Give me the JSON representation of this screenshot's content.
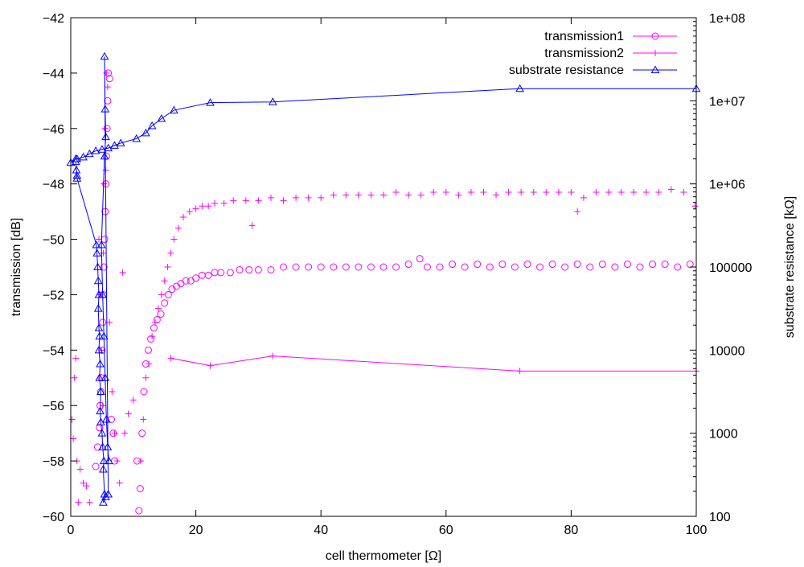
{
  "chart_data": {
    "type": "scatter",
    "xlabel": "cell thermometer [Ω]",
    "ylabel": "transmission [dB]",
    "y2label": "substrate resistance [kΩ]",
    "xlim": [
      0,
      100
    ],
    "ylim": [
      -60,
      -42
    ],
    "y2lim": [
      100,
      100000000
    ],
    "y2scale": "log",
    "grid": false,
    "legend_position": "top-right",
    "x_ticks": [
      "0",
      "20",
      "40",
      "60",
      "80",
      "100"
    ],
    "y_ticks": [
      "−60",
      "−58",
      "−56",
      "−54",
      "−52",
      "−50",
      "−48",
      "−46",
      "−44",
      "−42"
    ],
    "y2_ticks": [
      "100",
      "1000",
      "10000",
      "100000",
      "1e+06",
      "1e+07",
      "1e+08"
    ],
    "colors": {
      "transmission1": "#ff00ff",
      "transmission2": "#ff00ff",
      "substrate": "#0000ff",
      "axis": "#000000"
    },
    "series": [
      {
        "name": "transmission1",
        "marker": "circle",
        "axis": "left",
        "line": false,
        "points": [
          [
            4.0,
            -58.2
          ],
          [
            4.3,
            -57.5
          ],
          [
            4.6,
            -56.8
          ],
          [
            4.8,
            -55.5
          ],
          [
            5.0,
            -54.0
          ],
          [
            5.2,
            -52.0
          ],
          [
            5.4,
            -50.0
          ],
          [
            5.6,
            -48.0
          ],
          [
            5.8,
            -46.0
          ],
          [
            6.0,
            -44.0
          ],
          [
            6.2,
            -44.2
          ],
          [
            5.9,
            -45.0
          ],
          [
            5.7,
            -47.0
          ],
          [
            5.5,
            -49.0
          ],
          [
            5.3,
            -51.0
          ],
          [
            5.1,
            -53.0
          ],
          [
            4.9,
            -55.0
          ],
          [
            4.7,
            -56.0
          ],
          [
            6.5,
            -56.5
          ],
          [
            6.8,
            -57.0
          ],
          [
            7.0,
            -58.0
          ],
          [
            10.6,
            -58.0
          ],
          [
            10.9,
            -59.8
          ],
          [
            11.1,
            -59.0
          ],
          [
            11.4,
            -57.0
          ],
          [
            11.7,
            -55.5
          ],
          [
            12.0,
            -54.5
          ],
          [
            12.4,
            -54.0
          ],
          [
            12.8,
            -53.6
          ],
          [
            13.3,
            -53.2
          ],
          [
            13.8,
            -52.9
          ],
          [
            14.4,
            -52.7
          ],
          [
            15.0,
            -52.3
          ],
          [
            15.6,
            -52.0
          ],
          [
            16.2,
            -51.8
          ],
          [
            16.9,
            -51.7
          ],
          [
            17.6,
            -51.6
          ],
          [
            18.4,
            -51.5
          ],
          [
            19.2,
            -51.5
          ],
          [
            20.0,
            -51.4
          ],
          [
            21.0,
            -51.3
          ],
          [
            22.0,
            -51.3
          ],
          [
            23.0,
            -51.2
          ],
          [
            24.0,
            -51.2
          ],
          [
            25.5,
            -51.2
          ],
          [
            27.0,
            -51.1
          ],
          [
            28.5,
            -51.1
          ],
          [
            30.0,
            -51.1
          ],
          [
            32.0,
            -51.1
          ],
          [
            34.0,
            -51.0
          ],
          [
            36.0,
            -51.0
          ],
          [
            38.0,
            -51.0
          ],
          [
            40.0,
            -51.0
          ],
          [
            42.0,
            -51.0
          ],
          [
            44.0,
            -51.0
          ],
          [
            46.0,
            -51.0
          ],
          [
            48.0,
            -51.0
          ],
          [
            50.0,
            -51.0
          ],
          [
            52.0,
            -51.0
          ],
          [
            54.0,
            -50.9
          ],
          [
            55.8,
            -50.7
          ],
          [
            57.0,
            -51.0
          ],
          [
            59.0,
            -51.0
          ],
          [
            61.0,
            -50.9
          ],
          [
            63.0,
            -51.0
          ],
          [
            65.0,
            -50.9
          ],
          [
            67.0,
            -51.0
          ],
          [
            69.0,
            -50.9
          ],
          [
            71.0,
            -51.0
          ],
          [
            73.0,
            -50.9
          ],
          [
            75.0,
            -51.0
          ],
          [
            77.0,
            -50.9
          ],
          [
            79.0,
            -51.0
          ],
          [
            81.0,
            -50.9
          ],
          [
            83.0,
            -51.0
          ],
          [
            85.0,
            -50.9
          ],
          [
            87.0,
            -51.0
          ],
          [
            89.0,
            -50.9
          ],
          [
            91.0,
            -51.0
          ],
          [
            93.0,
            -50.9
          ],
          [
            95.0,
            -50.9
          ],
          [
            97.0,
            -51.0
          ],
          [
            99.0,
            -50.9
          ]
        ]
      },
      {
        "name": "transmission2",
        "marker": "plus",
        "axis": "left",
        "line": false,
        "points": [
          [
            0.2,
            -56.5
          ],
          [
            0.4,
            -57.2
          ],
          [
            0.6,
            -55.0
          ],
          [
            0.8,
            -54.3
          ],
          [
            1.0,
            -58.0
          ],
          [
            1.2,
            -59.5
          ],
          [
            1.5,
            -58.3
          ],
          [
            2.0,
            -58.8
          ],
          [
            2.5,
            -58.9
          ],
          [
            3.0,
            -59.5
          ],
          [
            4.5,
            -50.0
          ],
          [
            4.7,
            -52.0
          ],
          [
            4.9,
            -54.0
          ],
          [
            5.1,
            -56.0
          ],
          [
            5.3,
            -48.0
          ],
          [
            5.5,
            -46.0
          ],
          [
            5.7,
            -44.0
          ],
          [
            5.9,
            -44.5
          ],
          [
            5.6,
            -47.5
          ],
          [
            5.2,
            -50.5
          ],
          [
            6.2,
            -53.0
          ],
          [
            6.6,
            -55.5
          ],
          [
            7.0,
            -57.0
          ],
          [
            7.4,
            -58.0
          ],
          [
            7.8,
            -58.8
          ],
          [
            8.3,
            -51.2
          ],
          [
            8.6,
            -57.0
          ],
          [
            9.2,
            -56.3
          ],
          [
            10.0,
            -55.8
          ],
          [
            11.2,
            -58.0
          ],
          [
            11.6,
            -56.5
          ],
          [
            12.0,
            -55.0
          ],
          [
            12.5,
            -54.5
          ],
          [
            13.0,
            -53.5
          ],
          [
            13.5,
            -53.0
          ],
          [
            14.0,
            -52.5
          ],
          [
            14.5,
            -52.0
          ],
          [
            15.0,
            -51.5
          ],
          [
            15.5,
            -51.0
          ],
          [
            16.0,
            -50.5
          ],
          [
            16.5,
            -50.0
          ],
          [
            17.2,
            -49.6
          ],
          [
            18.0,
            -49.2
          ],
          [
            19.0,
            -49.0
          ],
          [
            20.0,
            -48.9
          ],
          [
            21.0,
            -48.8
          ],
          [
            22.0,
            -48.8
          ],
          [
            23.0,
            -48.7
          ],
          [
            24.5,
            -48.7
          ],
          [
            26.0,
            -48.6
          ],
          [
            28.0,
            -48.6
          ],
          [
            29.0,
            -49.5
          ],
          [
            30.0,
            -48.6
          ],
          [
            32.0,
            -48.5
          ],
          [
            34.0,
            -48.6
          ],
          [
            36.0,
            -48.5
          ],
          [
            38.0,
            -48.5
          ],
          [
            40.0,
            -48.5
          ],
          [
            42.0,
            -48.4
          ],
          [
            44.0,
            -48.4
          ],
          [
            46.0,
            -48.4
          ],
          [
            48.0,
            -48.4
          ],
          [
            50.0,
            -48.4
          ],
          [
            52.0,
            -48.3
          ],
          [
            54.0,
            -48.4
          ],
          [
            56.0,
            -48.4
          ],
          [
            58.0,
            -48.3
          ],
          [
            60.0,
            -48.3
          ],
          [
            62.0,
            -48.4
          ],
          [
            64.0,
            -48.3
          ],
          [
            66.0,
            -48.3
          ],
          [
            68.0,
            -48.4
          ],
          [
            70.0,
            -48.3
          ],
          [
            72.0,
            -48.3
          ],
          [
            74.0,
            -48.3
          ],
          [
            76.0,
            -48.3
          ],
          [
            78.0,
            -48.3
          ],
          [
            80.0,
            -48.3
          ],
          [
            81.0,
            -49.0
          ],
          [
            82.0,
            -48.5
          ],
          [
            84.0,
            -48.3
          ],
          [
            86.0,
            -48.3
          ],
          [
            88.0,
            -48.3
          ],
          [
            90.0,
            -48.3
          ],
          [
            92.0,
            -48.3
          ],
          [
            94.0,
            -48.3
          ],
          [
            96.0,
            -48.2
          ],
          [
            98.0,
            -48.3
          ],
          [
            99.8,
            -48.8
          ]
        ]
      },
      {
        "name": "transmission2",
        "marker": "plus",
        "axis": "right",
        "line": true,
        "legend": false,
        "points": [
          [
            16.0,
            8000
          ],
          [
            22.3,
            6500
          ],
          [
            32.3,
            8500
          ],
          [
            71.8,
            5600
          ],
          [
            100.0,
            5600
          ]
        ]
      },
      {
        "name": "substrate resistance",
        "marker": "triangle",
        "axis": "right",
        "line": true,
        "points": [
          [
            0.0,
            1800000
          ],
          [
            0.8,
            2000000
          ],
          [
            1.0,
            2000000
          ],
          [
            2.0,
            2100000
          ],
          [
            3.0,
            2300000
          ],
          [
            4.0,
            2500000
          ],
          [
            5.0,
            2600000
          ],
          [
            6.0,
            2700000
          ],
          [
            7.0,
            2900000
          ],
          [
            8.0,
            3100000
          ],
          [
            10.5,
            3500000
          ],
          [
            12.0,
            4100000
          ],
          [
            13.0,
            5000000
          ],
          [
            14.5,
            6100000
          ],
          [
            16.5,
            7700000
          ],
          [
            22.3,
            9500000
          ],
          [
            32.3,
            9700000
          ],
          [
            71.8,
            14000000
          ],
          [
            100.0,
            14000000
          ]
        ]
      },
      {
        "name": "substrate resistance",
        "marker": "triangle",
        "axis": "left",
        "line": true,
        "legend": false,
        "points": [
          [
            0.8,
            -47.2
          ],
          [
            0.9,
            -47.5
          ],
          [
            1.0,
            -47.7
          ],
          [
            1.0,
            -47.8
          ],
          [
            4.1,
            -50.2
          ],
          [
            4.2,
            -50.5
          ],
          [
            4.3,
            -51.0
          ],
          [
            4.4,
            -51.5
          ],
          [
            4.5,
            -52.0
          ],
          [
            4.4,
            -52.5
          ],
          [
            4.5,
            -53.2
          ],
          [
            4.6,
            -53.5
          ],
          [
            4.5,
            -54.0
          ],
          [
            4.7,
            -54.5
          ],
          [
            4.6,
            -55.0
          ],
          [
            4.8,
            -55.5
          ],
          [
            4.7,
            -56.2
          ],
          [
            4.8,
            -56.6
          ],
          [
            5.0,
            -57.0
          ],
          [
            5.1,
            -57.5
          ],
          [
            5.3,
            -58.0
          ],
          [
            5.2,
            -58.3
          ],
          [
            5.4,
            -59.2
          ],
          [
            5.2,
            -59.5
          ],
          [
            5.6,
            -59.3
          ],
          [
            6.0,
            -59.2
          ],
          [
            5.4,
            -43.4
          ],
          [
            5.5,
            -45.3
          ],
          [
            5.6,
            -46.3
          ],
          [
            5.4,
            -47.0
          ],
          [
            4.9,
            -50.2
          ],
          [
            5.1,
            -52.0
          ],
          [
            5.3,
            -53.5
          ],
          [
            5.5,
            -55.0
          ],
          [
            5.7,
            -56.5
          ],
          [
            5.9,
            -57.5
          ],
          [
            6.1,
            -58.0
          ]
        ]
      }
    ]
  }
}
